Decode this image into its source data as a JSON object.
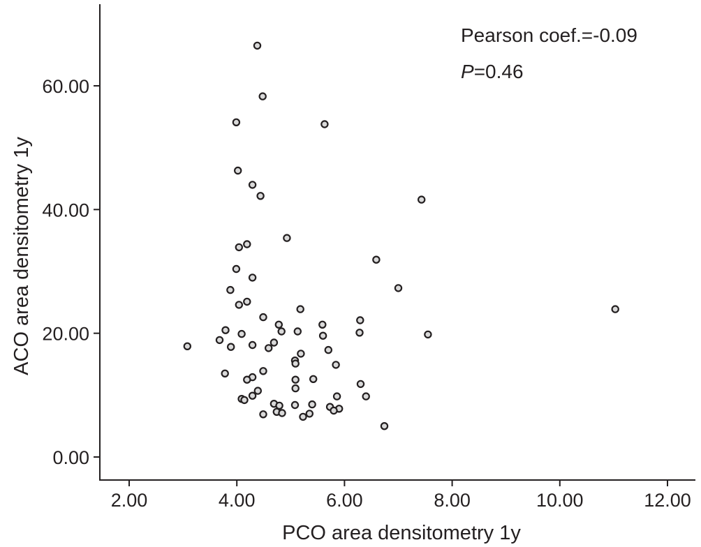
{
  "chart_data": {
    "type": "scatter",
    "title": "",
    "xlabel": "PCO area densitometry 1y",
    "ylabel": "ACO area densitometry 1y",
    "xlim": [
      1.5,
      12.5
    ],
    "ylim": [
      -4,
      73
    ],
    "xticks": [
      2,
      4,
      6,
      8,
      10,
      12
    ],
    "xtick_labels": [
      "2.00",
      "4.00",
      "6.00",
      "8.00",
      "10.00",
      "12.00"
    ],
    "yticks": [
      0,
      20,
      40,
      60
    ],
    "ytick_labels": [
      "0.00",
      "20.00",
      "40.00",
      "60.00"
    ],
    "grid": false,
    "annotation": {
      "pearson_text": "Pearson coef.=-0.09",
      "p_symbol": "P",
      "p_value_text": "=0.46"
    },
    "points": [
      {
        "x": 4.38,
        "y": 66.5
      },
      {
        "x": 4.48,
        "y": 58.3
      },
      {
        "x": 3.99,
        "y": 54.1
      },
      {
        "x": 5.63,
        "y": 53.8
      },
      {
        "x": 4.02,
        "y": 46.3
      },
      {
        "x": 4.29,
        "y": 44.0
      },
      {
        "x": 4.44,
        "y": 42.2
      },
      {
        "x": 7.43,
        "y": 41.6
      },
      {
        "x": 4.93,
        "y": 35.4
      },
      {
        "x": 4.19,
        "y": 34.4
      },
      {
        "x": 4.04,
        "y": 33.9
      },
      {
        "x": 6.59,
        "y": 31.9
      },
      {
        "x": 3.99,
        "y": 30.4
      },
      {
        "x": 4.29,
        "y": 29.0
      },
      {
        "x": 7.0,
        "y": 27.3
      },
      {
        "x": 3.88,
        "y": 27.0
      },
      {
        "x": 4.19,
        "y": 25.1
      },
      {
        "x": 4.04,
        "y": 24.6
      },
      {
        "x": 5.18,
        "y": 23.9
      },
      {
        "x": 11.03,
        "y": 23.9
      },
      {
        "x": 4.49,
        "y": 22.6
      },
      {
        "x": 6.29,
        "y": 22.1
      },
      {
        "x": 4.78,
        "y": 21.4
      },
      {
        "x": 5.59,
        "y": 21.4
      },
      {
        "x": 3.79,
        "y": 20.5
      },
      {
        "x": 4.83,
        "y": 20.3
      },
      {
        "x": 5.13,
        "y": 20.3
      },
      {
        "x": 6.28,
        "y": 20.1
      },
      {
        "x": 4.09,
        "y": 19.9
      },
      {
        "x": 5.6,
        "y": 19.6
      },
      {
        "x": 7.55,
        "y": 19.8
      },
      {
        "x": 3.68,
        "y": 18.9
      },
      {
        "x": 4.69,
        "y": 18.5
      },
      {
        "x": 4.29,
        "y": 18.1
      },
      {
        "x": 3.08,
        "y": 17.9
      },
      {
        "x": 3.89,
        "y": 17.8
      },
      {
        "x": 4.59,
        "y": 17.6
      },
      {
        "x": 5.7,
        "y": 17.3
      },
      {
        "x": 5.19,
        "y": 16.7
      },
      {
        "x": 5.08,
        "y": 15.6
      },
      {
        "x": 5.09,
        "y": 15.1
      },
      {
        "x": 5.84,
        "y": 14.9
      },
      {
        "x": 4.49,
        "y": 13.9
      },
      {
        "x": 3.78,
        "y": 13.5
      },
      {
        "x": 4.29,
        "y": 12.9
      },
      {
        "x": 4.19,
        "y": 12.5
      },
      {
        "x": 5.42,
        "y": 12.6
      },
      {
        "x": 5.09,
        "y": 12.5
      },
      {
        "x": 6.3,
        "y": 11.8
      },
      {
        "x": 5.09,
        "y": 11.1
      },
      {
        "x": 4.39,
        "y": 10.7
      },
      {
        "x": 4.29,
        "y": 9.9
      },
      {
        "x": 5.86,
        "y": 9.8
      },
      {
        "x": 6.4,
        "y": 9.8
      },
      {
        "x": 4.09,
        "y": 9.4
      },
      {
        "x": 4.14,
        "y": 9.2
      },
      {
        "x": 4.69,
        "y": 8.6
      },
      {
        "x": 4.79,
        "y": 8.3
      },
      {
        "x": 5.08,
        "y": 8.4
      },
      {
        "x": 5.4,
        "y": 8.5
      },
      {
        "x": 5.73,
        "y": 8.1
      },
      {
        "x": 5.9,
        "y": 7.8
      },
      {
        "x": 5.8,
        "y": 7.5
      },
      {
        "x": 4.74,
        "y": 7.3
      },
      {
        "x": 4.84,
        "y": 7.1
      },
      {
        "x": 4.49,
        "y": 6.9
      },
      {
        "x": 5.35,
        "y": 7.0
      },
      {
        "x": 5.23,
        "y": 6.5
      },
      {
        "x": 6.74,
        "y": 5.0
      }
    ]
  }
}
